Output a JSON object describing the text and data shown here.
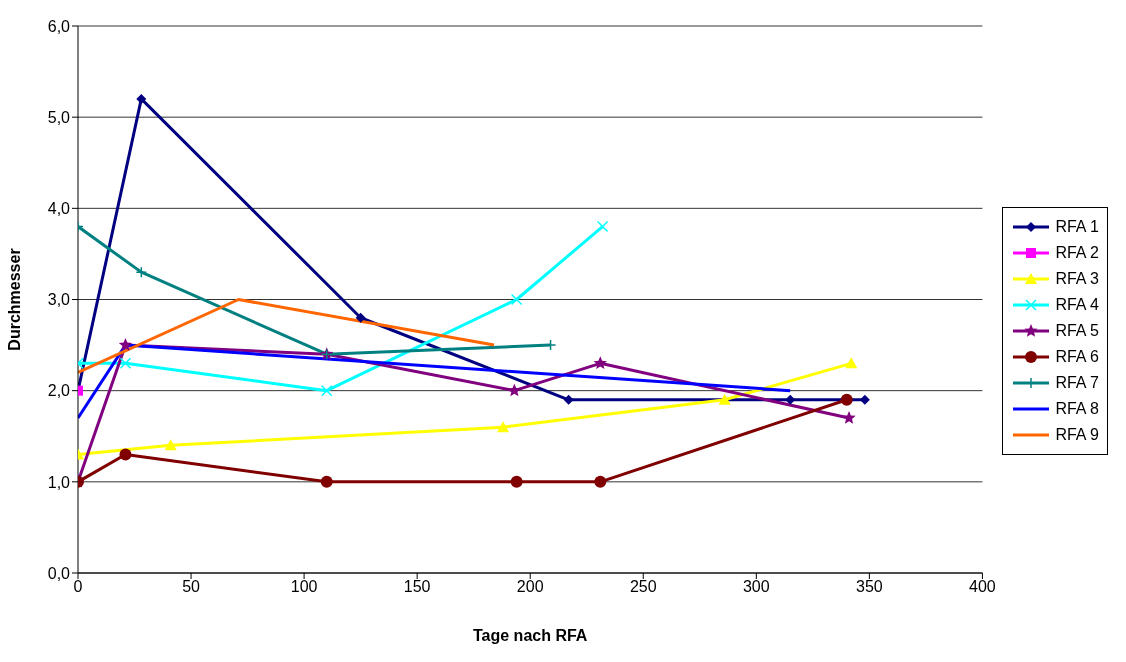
{
  "chart_data": {
    "type": "line",
    "xlabel": "Tage nach RFA",
    "ylabel": "Durchmesser",
    "xlim": [
      0,
      400
    ],
    "xticks": [
      0,
      50,
      100,
      150,
      200,
      250,
      300,
      350,
      400
    ],
    "ylim": [
      0,
      6
    ],
    "yticks": [
      {
        "value": 0,
        "label": "0,0"
      },
      {
        "value": 1,
        "label": "1,0"
      },
      {
        "value": 2,
        "label": "2,0"
      },
      {
        "value": 3,
        "label": "3,0"
      },
      {
        "value": 4,
        "label": "4,0"
      },
      {
        "value": 5,
        "label": "5,0"
      },
      {
        "value": 6,
        "label": "6,0"
      }
    ],
    "grid": "y",
    "legend": "right",
    "series": [
      {
        "name": "RFA 1",
        "color": "#000080",
        "marker": "diamond",
        "x": [
          0,
          28,
          125,
          217,
          315,
          348
        ],
        "values": [
          2.0,
          5.2,
          2.8,
          1.9,
          1.9,
          1.9
        ]
      },
      {
        "name": "RFA 2",
        "color": "#ff00ff",
        "marker": "square",
        "x": [
          0
        ],
        "values": [
          2.0
        ]
      },
      {
        "name": "RFA 3",
        "color": "#ffff00",
        "marker": "triangle",
        "x": [
          0,
          41,
          188,
          286,
          342
        ],
        "values": [
          1.3,
          1.4,
          1.6,
          1.9,
          2.3
        ]
      },
      {
        "name": "RFA 4",
        "color": "#00ffff",
        "marker": "cross",
        "x": [
          0,
          21,
          110,
          194,
          232
        ],
        "values": [
          2.3,
          2.3,
          2.0,
          3.0,
          3.8
        ]
      },
      {
        "name": "RFA 5",
        "color": "#800080",
        "marker": "star",
        "x": [
          0,
          21,
          110,
          193,
          231,
          341
        ],
        "values": [
          1.0,
          2.5,
          2.4,
          2.0,
          2.3,
          1.7
        ]
      },
      {
        "name": "RFA 6",
        "color": "#800000",
        "marker": "circle",
        "x": [
          0,
          21,
          110,
          194,
          231,
          340
        ],
        "values": [
          1.0,
          1.3,
          1.0,
          1.0,
          1.0,
          1.9
        ]
      },
      {
        "name": "RFA 7",
        "color": "#008080",
        "marker": "plus",
        "x": [
          0,
          28,
          110,
          209
        ],
        "values": [
          3.8,
          3.3,
          2.4,
          2.5
        ]
      },
      {
        "name": "RFA 8",
        "color": "#0000ff",
        "marker": "none",
        "x": [
          0,
          21,
          315
        ],
        "values": [
          1.7,
          2.5,
          2.0
        ]
      },
      {
        "name": "RFA 9",
        "color": "#ff6600",
        "marker": "none",
        "x": [
          0,
          71,
          184
        ],
        "values": [
          2.2,
          3.0,
          2.5
        ]
      }
    ]
  }
}
